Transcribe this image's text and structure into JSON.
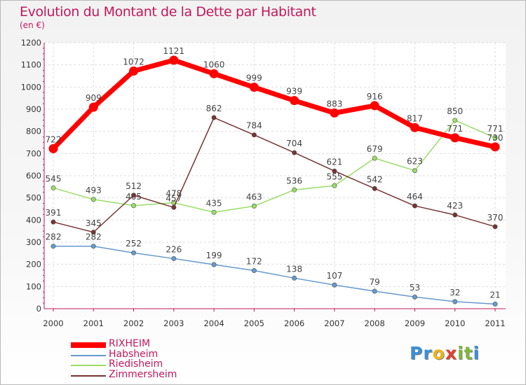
{
  "title": "Evolution du Montant de la Dette par Habitant",
  "subtitle": "(en €)",
  "logo": {
    "text": "Proxiti",
    "letters": [
      {
        "ch": "P",
        "color": "#3a8fd6"
      },
      {
        "ch": "r",
        "color": "#3a8fd6"
      },
      {
        "ch": "o",
        "color": "#f0b21a"
      },
      {
        "ch": "x",
        "color": "#e0412e"
      },
      {
        "ch": "i",
        "color": "#7fb83a"
      },
      {
        "ch": "t",
        "color": "#7fb83a"
      },
      {
        "ch": "i",
        "color": "#3a8fd6"
      }
    ]
  },
  "chart_data": {
    "type": "line",
    "title": "Evolution du Montant de la Dette par Habitant",
    "ylabel": "(en €)",
    "xlabel": "",
    "x": [
      "2000",
      "2001",
      "2002",
      "2003",
      "2004",
      "2005",
      "2006",
      "2007",
      "2008",
      "2009",
      "2010",
      "2011"
    ],
    "ylim": [
      0,
      1200
    ],
    "yticks": [
      0,
      100,
      200,
      300,
      400,
      500,
      600,
      700,
      800,
      900,
      1000,
      1100,
      1200
    ],
    "grid": true,
    "legend_position": "bottom-left",
    "series": [
      {
        "name": "Habsheim",
        "color": "#6699cc",
        "values": [
          282,
          282,
          252,
          226,
          199,
          172,
          138,
          107,
          79,
          53,
          32,
          21
        ]
      },
      {
        "name": "Riedisheim",
        "color": "#99dd66",
        "values": [
          545,
          493,
          465,
          478,
          435,
          463,
          536,
          555,
          679,
          623,
          850,
          771
        ]
      },
      {
        "name": "Zimmersheim",
        "color": "#773333",
        "values": [
          391,
          345,
          512,
          457,
          862,
          784,
          704,
          621,
          542,
          464,
          423,
          370
        ]
      },
      {
        "name": "RIXHEIM",
        "color": "#ff0000",
        "values": [
          722,
          909,
          1072,
          1121,
          1060,
          999,
          939,
          883,
          916,
          817,
          771,
          730
        ]
      }
    ],
    "legend": [
      "RIXHEIM",
      "Habsheim",
      "Riedisheim",
      "Zimmersheim"
    ]
  }
}
